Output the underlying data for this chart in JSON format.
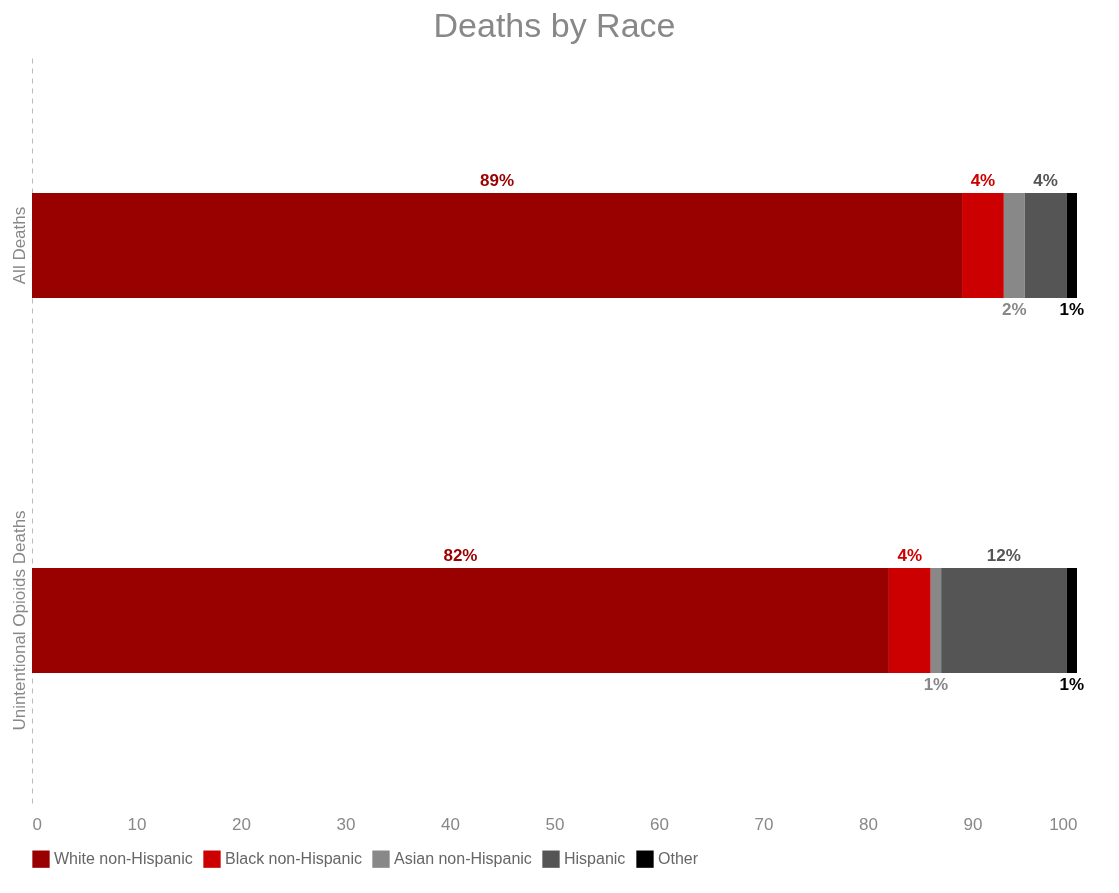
{
  "chart_data": {
    "type": "bar",
    "title": "Deaths by Race",
    "orientation": "horizontal",
    "stacked": true,
    "categories": [
      "All Deaths",
      "Unintentional Opioids Deaths"
    ],
    "series": [
      {
        "name": "White non-Hispanic",
        "color": "#990000",
        "values": [
          89,
          82
        ],
        "value_labels": [
          "89%",
          "82%"
        ]
      },
      {
        "name": "Black non-Hispanic",
        "color": "#cc0000",
        "values": [
          4,
          4
        ],
        "value_labels": [
          "4%",
          "4%"
        ]
      },
      {
        "name": "Asian non-Hispanic",
        "color": "#888888",
        "values": [
          2,
          1
        ],
        "value_labels": [
          "2%",
          "1%"
        ]
      },
      {
        "name": "Hispanic",
        "color": "#555555",
        "values": [
          4,
          12
        ],
        "value_labels": [
          "4%",
          "12%"
        ]
      },
      {
        "name": "Other",
        "color": "#000000",
        "values": [
          1,
          1
        ],
        "value_labels": [
          "1%",
          "1%"
        ]
      }
    ],
    "xlim": [
      0,
      100
    ],
    "xticks": [
      0,
      10,
      20,
      30,
      40,
      50,
      60,
      70,
      80,
      90,
      100
    ],
    "grid": false,
    "legend": "bottom"
  }
}
